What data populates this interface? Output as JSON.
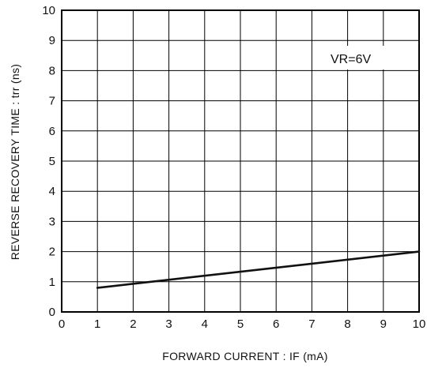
{
  "chart_data": {
    "type": "line",
    "x": [
      1,
      10
    ],
    "series": [
      {
        "values": [
          0.8,
          2.0
        ]
      }
    ],
    "xlabel": "FORWARD CURRENT : IF (mA)",
    "ylabel": "REVERSE RECOVERY TIME : trr (ns)",
    "xlim": [
      0,
      10
    ],
    "ylim": [
      0,
      10
    ],
    "xticks": [
      "0",
      "1",
      "2",
      "3",
      "4",
      "5",
      "6",
      "7",
      "8",
      "9",
      "10"
    ],
    "yticks": [
      "0",
      "1",
      "2",
      "3",
      "4",
      "5",
      "6",
      "7",
      "8",
      "9",
      "10"
    ],
    "grid": true,
    "annotation": "VR=6V",
    "line_color": "#111111",
    "grid_color": "#000000"
  }
}
